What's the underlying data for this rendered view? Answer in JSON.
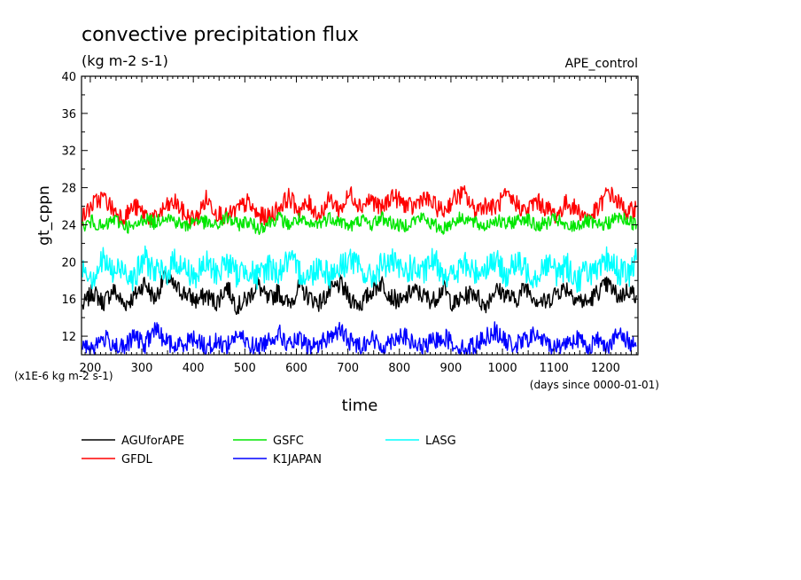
{
  "chart_data": {
    "type": "line",
    "title": "convective precipitation flux",
    "subtitle": "(kg m-2 s-1)",
    "run_label": "APE_control",
    "ylabel": "gt_cppn",
    "xlabel": "time",
    "y_unit_note": "(x1E-6 kg m-2 s-1)",
    "x_unit_note": "(days since 0000-01-01)",
    "xlim": [
      183,
      1263
    ],
    "ylim": [
      10,
      40
    ],
    "x_ticks": [
      200,
      300,
      400,
      500,
      600,
      700,
      800,
      900,
      1000,
      1100,
      1200
    ],
    "x_tick_labels": [
      "200",
      "300",
      "400",
      "500",
      "600",
      "700",
      "800",
      "900",
      "1000",
      "1100",
      "1200"
    ],
    "y_ticks": [
      12,
      16,
      20,
      24,
      28,
      32,
      36,
      40
    ],
    "y_tick_labels": [
      "12",
      "16",
      "20",
      "24",
      "28",
      "32",
      "36",
      "40"
    ],
    "grid": false,
    "legend_position": "bottom",
    "series": [
      {
        "name": "AGUforAPE",
        "color": "#000000",
        "x": [
          185,
          205,
          225,
          245,
          265,
          285,
          305,
          325,
          345,
          365,
          385,
          405,
          425,
          445,
          465,
          485,
          505,
          525,
          545,
          565,
          585,
          605,
          625,
          645,
          665,
          685,
          705,
          725,
          745,
          765,
          785,
          805,
          825,
          845,
          865,
          885,
          905,
          925,
          945,
          965,
          985,
          1005,
          1025,
          1045,
          1065,
          1085,
          1105,
          1125,
          1145,
          1165,
          1185,
          1205,
          1225,
          1245,
          1260
        ],
        "y": [
          15.2,
          16.8,
          15.6,
          17.0,
          15.4,
          16.2,
          17.8,
          16.0,
          18.4,
          17.2,
          16.6,
          15.8,
          16.4,
          15.6,
          17.4,
          15.2,
          16.0,
          17.6,
          15.8,
          16.8,
          15.4,
          17.2,
          16.2,
          15.6,
          16.8,
          17.6,
          16.0,
          15.4,
          16.8,
          17.8,
          16.2,
          15.6,
          17.0,
          16.4,
          15.8,
          17.2,
          15.4,
          16.2,
          16.8,
          15.2,
          17.0,
          16.6,
          15.8,
          17.4,
          16.0,
          15.6,
          16.8,
          17.2,
          16.0,
          15.6,
          16.8,
          17.6,
          16.2,
          17.0,
          16.4
        ]
      },
      {
        "name": "GFDL",
        "color": "#ff0000",
        "x": [
          185,
          205,
          225,
          245,
          265,
          285,
          305,
          325,
          345,
          365,
          385,
          405,
          425,
          445,
          465,
          485,
          505,
          525,
          545,
          565,
          585,
          605,
          625,
          645,
          665,
          685,
          705,
          725,
          745,
          765,
          785,
          805,
          825,
          845,
          865,
          885,
          905,
          925,
          945,
          965,
          985,
          1005,
          1025,
          1045,
          1065,
          1085,
          1105,
          1125,
          1145,
          1165,
          1185,
          1205,
          1225,
          1245,
          1260
        ],
        "y": [
          24.8,
          26.2,
          27.0,
          25.6,
          24.8,
          26.0,
          25.2,
          24.6,
          25.8,
          26.4,
          25.0,
          24.6,
          26.8,
          25.4,
          24.8,
          25.6,
          26.4,
          25.0,
          24.8,
          25.8,
          27.0,
          25.6,
          26.2,
          25.0,
          26.8,
          25.6,
          27.4,
          26.0,
          26.8,
          25.6,
          27.2,
          26.4,
          25.8,
          27.0,
          26.2,
          25.4,
          26.8,
          27.4,
          25.6,
          26.2,
          25.8,
          27.0,
          26.4,
          25.4,
          26.6,
          25.8,
          25.0,
          26.4,
          25.6,
          24.8,
          25.6,
          27.6,
          26.4,
          25.2,
          26.0
        ]
      },
      {
        "name": "GSFC",
        "color": "#00e600",
        "x": [
          185,
          205,
          225,
          245,
          265,
          285,
          305,
          325,
          345,
          365,
          385,
          405,
          425,
          445,
          465,
          485,
          505,
          525,
          545,
          565,
          585,
          605,
          625,
          645,
          665,
          685,
          705,
          725,
          745,
          765,
          785,
          805,
          825,
          845,
          865,
          885,
          905,
          925,
          945,
          965,
          985,
          1005,
          1025,
          1045,
          1065,
          1085,
          1105,
          1125,
          1145,
          1165,
          1185,
          1205,
          1225,
          1245,
          1260
        ],
        "y": [
          23.8,
          24.4,
          23.6,
          24.6,
          24.0,
          23.6,
          24.8,
          24.2,
          25.0,
          24.4,
          23.8,
          24.6,
          24.2,
          23.8,
          24.8,
          24.0,
          24.4,
          23.6,
          24.2,
          24.8,
          24.0,
          24.6,
          23.8,
          24.2,
          24.8,
          24.4,
          23.8,
          24.6,
          24.0,
          24.8,
          24.2,
          23.8,
          24.4,
          24.8,
          24.0,
          23.6,
          24.4,
          24.8,
          24.2,
          23.8,
          24.6,
          24.0,
          24.4,
          24.8,
          23.8,
          24.2,
          24.6,
          23.6,
          24.0,
          24.4,
          23.8,
          24.2,
          24.8,
          24.4,
          24.0
        ]
      },
      {
        "name": "LASG",
        "color": "#00ffff",
        "x": [
          185,
          205,
          225,
          245,
          265,
          285,
          305,
          325,
          345,
          365,
          385,
          405,
          425,
          445,
          465,
          485,
          505,
          525,
          545,
          565,
          585,
          605,
          625,
          645,
          665,
          685,
          705,
          725,
          745,
          765,
          785,
          805,
          825,
          845,
          865,
          885,
          905,
          925,
          945,
          965,
          985,
          1005,
          1025,
          1045,
          1065,
          1085,
          1105,
          1125,
          1145,
          1165,
          1185,
          1205,
          1225,
          1245,
          1260
        ],
        "y": [
          19.6,
          18.4,
          20.2,
          18.8,
          19.4,
          18.2,
          20.4,
          19.0,
          18.6,
          20.2,
          19.2,
          18.4,
          19.8,
          18.8,
          20.0,
          18.6,
          19.4,
          18.2,
          19.6,
          18.8,
          20.2,
          19.0,
          18.4,
          19.8,
          18.6,
          19.4,
          20.4,
          19.0,
          18.2,
          19.6,
          20.0,
          18.8,
          19.4,
          18.6,
          20.2,
          19.0,
          18.4,
          19.8,
          18.8,
          19.4,
          20.2,
          18.6,
          19.8,
          19.2,
          18.4,
          20.0,
          18.8,
          19.6,
          18.0,
          19.2,
          18.6,
          20.4,
          19.0,
          18.6,
          20.2
        ]
      },
      {
        "name": "K1JAPAN",
        "color": "#0000ff",
        "x": [
          185,
          205,
          225,
          245,
          265,
          285,
          305,
          325,
          345,
          365,
          385,
          405,
          425,
          445,
          465,
          485,
          505,
          525,
          545,
          565,
          585,
          605,
          625,
          645,
          665,
          685,
          705,
          725,
          745,
          765,
          785,
          805,
          825,
          845,
          865,
          885,
          905,
          925,
          945,
          965,
          985,
          1005,
          1025,
          1045,
          1065,
          1085,
          1105,
          1125,
          1145,
          1165,
          1185,
          1205,
          1225,
          1245,
          1260
        ],
        "y": [
          11.2,
          10.8,
          11.8,
          11.2,
          10.6,
          12.0,
          11.0,
          12.8,
          11.6,
          10.8,
          11.4,
          11.8,
          10.8,
          11.4,
          11.0,
          12.2,
          11.2,
          10.8,
          11.6,
          12.4,
          11.0,
          11.6,
          10.8,
          11.2,
          12.0,
          12.6,
          11.4,
          11.0,
          11.8,
          10.8,
          11.6,
          12.2,
          11.2,
          10.8,
          11.4,
          12.0,
          11.2,
          10.6,
          11.0,
          11.8,
          12.6,
          11.4,
          11.0,
          11.6,
          12.2,
          11.2,
          10.8,
          11.4,
          11.8,
          10.8,
          11.6,
          11.0,
          12.2,
          11.4,
          11.0
        ]
      }
    ]
  }
}
